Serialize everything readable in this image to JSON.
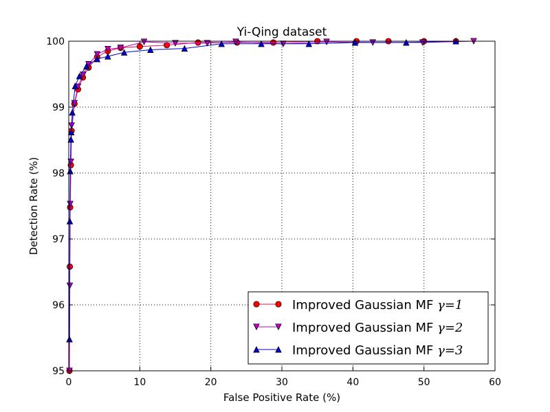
{
  "chart_data": {
    "type": "line",
    "title": "Yi-Qing dataset",
    "xlabel": "False Positive Rate (%)",
    "ylabel": "Detection Rate (%)",
    "xlim": [
      0,
      60
    ],
    "ylim": [
      95,
      100
    ],
    "xticks": [
      "0",
      "10",
      "20",
      "30",
      "40",
      "50",
      "60"
    ],
    "yticks": [
      "95",
      "96",
      "97",
      "98",
      "99",
      "100"
    ],
    "grid": true,
    "legend_position": "lower-right",
    "series": [
      {
        "name": "Improved Gaussian MF",
        "gamma_label": "γ=1",
        "color": "#ff0000",
        "line_color": "#d4145a",
        "marker": "circle",
        "x": [
          0.1,
          0.15,
          0.2,
          0.3,
          0.4,
          0.8,
          1.3,
          2.0,
          2.8,
          4.0,
          5.5,
          7.3,
          10.0,
          13.8,
          18.2,
          23.7,
          28.8,
          35.0,
          40.5,
          45.0,
          50.0,
          54.5
        ],
        "y": [
          95.0,
          96.58,
          97.48,
          98.12,
          98.64,
          99.05,
          99.27,
          99.45,
          99.6,
          99.76,
          99.85,
          99.9,
          99.92,
          99.94,
          99.98,
          99.98,
          99.98,
          100.0,
          100.0,
          100.0,
          100.0,
          100.0
        ]
      },
      {
        "name": "Improved Gaussian MF",
        "gamma_label": "γ=2",
        "color": "#bf00bf",
        "line_color": "#bf00bf",
        "marker": "triangle-down",
        "x": [
          0.1,
          0.15,
          0.2,
          0.3,
          0.4,
          0.8,
          1.3,
          2.0,
          2.8,
          4.0,
          5.5,
          7.3,
          10.6,
          15.0,
          19.5,
          23.5,
          30.2,
          36.3,
          42.8,
          49.8,
          57.0
        ],
        "y": [
          95.0,
          96.29,
          97.53,
          98.17,
          98.72,
          99.06,
          99.31,
          99.49,
          99.65,
          99.8,
          99.88,
          99.9,
          99.99,
          99.97,
          99.97,
          99.99,
          99.96,
          99.99,
          99.98,
          99.98,
          100.0
        ],
        "extra_x": [],
        "extra_y": []
      },
      {
        "name": "Improved Gaussian MF",
        "gamma_label": "γ=3",
        "color": "#0000cc",
        "line_color": "#0000cc",
        "marker": "triangle-up",
        "x": [
          0.1,
          0.15,
          0.2,
          0.3,
          0.35,
          0.5,
          0.9,
          1.5,
          2.5,
          4.0,
          5.5,
          7.8,
          11.5,
          16.3,
          21.5,
          27.1,
          33.8,
          40.3,
          47.5,
          54.5
        ],
        "y": [
          95.48,
          97.27,
          98.03,
          98.51,
          98.62,
          98.92,
          99.32,
          99.47,
          99.62,
          99.73,
          99.77,
          99.83,
          99.87,
          99.89,
          99.96,
          99.96,
          99.96,
          99.98,
          99.98,
          100.0
        ]
      }
    ]
  }
}
